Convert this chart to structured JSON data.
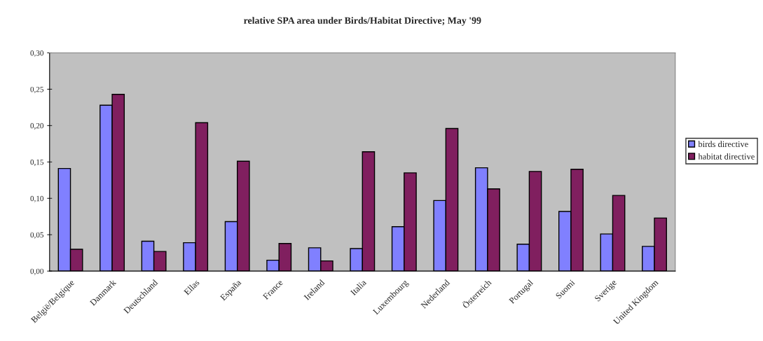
{
  "chart_data": {
    "type": "bar",
    "title": "relative SPA area under Birds/Habitat Directive; May '99",
    "categories": [
      "België/Belgique",
      "Danmark",
      "Deutschland",
      "Ellas",
      "España",
      "France",
      "Ireland",
      "Italia",
      "Luxembourg",
      "Nederland",
      "Österreich",
      "Portugal",
      "Suomi",
      "Sverige",
      "United Kingdom"
    ],
    "series": [
      {
        "name": "birds directive",
        "color": "#8080ff",
        "values": [
          0.141,
          0.228,
          0.041,
          0.039,
          0.068,
          0.015,
          0.032,
          0.031,
          0.061,
          0.097,
          0.142,
          0.037,
          0.082,
          0.051,
          0.034
        ]
      },
      {
        "name": "habitat directive",
        "color": "#801f5f",
        "values": [
          0.03,
          0.243,
          0.027,
          0.204,
          0.151,
          0.038,
          0.014,
          0.164,
          0.135,
          0.196,
          0.113,
          0.137,
          0.14,
          0.104,
          0.073
        ]
      }
    ],
    "ylim": [
      0,
      0.3
    ],
    "yticks": [
      {
        "value": 0,
        "label": "0,00"
      },
      {
        "value": 0.05,
        "label": "0,05"
      },
      {
        "value": 0.1,
        "label": "0,10"
      },
      {
        "value": 0.15,
        "label": "0,15"
      },
      {
        "value": 0.2,
        "label": "0,20"
      },
      {
        "value": 0.25,
        "label": "0,25"
      },
      {
        "value": 0.3,
        "label": "0,30"
      }
    ],
    "grid": false,
    "legend": "right"
  }
}
